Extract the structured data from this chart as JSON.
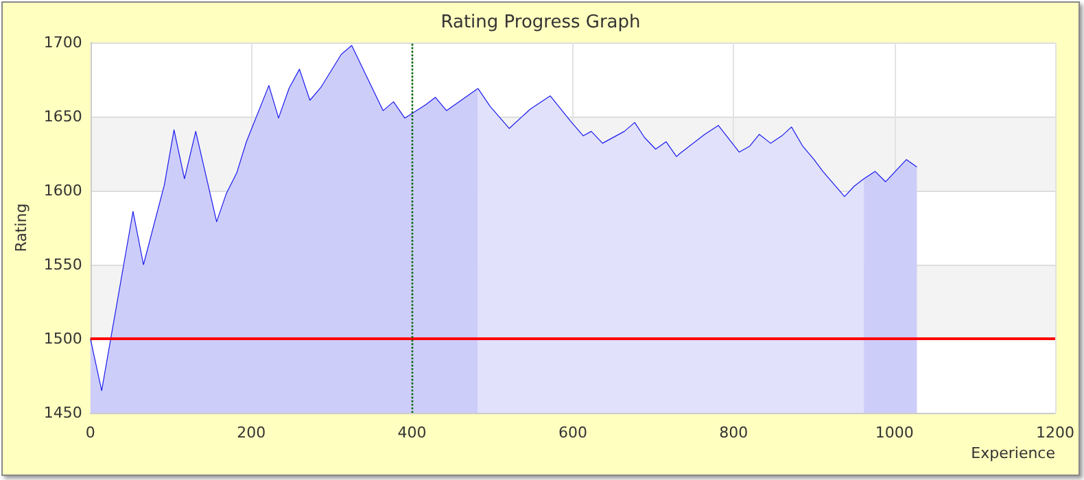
{
  "chart_data": {
    "type": "area",
    "title": "Rating Progress Graph",
    "xlabel": "Experience",
    "ylabel": "Rating",
    "series": [
      {
        "color": "#cdcdfa",
        "x": [
          0,
          14,
          53,
          66,
          92,
          104,
          117,
          131,
          157,
          169,
          182,
          194,
          222,
          234,
          247,
          260,
          273,
          287,
          312,
          325,
          364,
          377,
          391,
          417,
          429,
          443,
          482
        ],
        "values": [
          1500,
          1465,
          1586,
          1550,
          1604,
          1641,
          1608,
          1640,
          1579,
          1598,
          1612,
          1633,
          1671,
          1649,
          1669,
          1682,
          1661,
          1670,
          1692,
          1698,
          1654,
          1660,
          1649,
          1658,
          1663,
          1654,
          1669
        ]
      },
      {
        "color": "#e1e1fb",
        "x": [
          482,
          497,
          521,
          547,
          572,
          597,
          613,
          623,
          637,
          664,
          677,
          689,
          703,
          716,
          729,
          733,
          764,
          781,
          807,
          820,
          832,
          846,
          860,
          872,
          886,
          900,
          911,
          938,
          950,
          962
        ],
        "values": [
          1669,
          1657,
          1642,
          1655,
          1664,
          1647,
          1637,
          1640,
          1632,
          1640,
          1646,
          1636,
          1628,
          1633,
          1623,
          1625,
          1638,
          1644,
          1626,
          1630,
          1638,
          1632,
          1637,
          1643,
          1630,
          1621,
          1613,
          1596,
          1603,
          1608
        ]
      },
      {
        "color": "#cdcdfa",
        "x": [
          962,
          976,
          989,
          1015,
          1028
        ],
        "values": [
          1608,
          1613,
          1606,
          1621,
          1616
        ]
      }
    ],
    "xlim": [
      0,
      1200
    ],
    "xticks": [
      0,
      200,
      400,
      600,
      800,
      1000,
      1200
    ],
    "ylim": [
      1450,
      1700
    ],
    "yticks": [
      1450,
      1500,
      1550,
      1600,
      1650,
      1700
    ],
    "ref_lines": [
      {
        "axis": "y",
        "value": 1500,
        "color": "#ff0000",
        "line_style": "solid"
      },
      {
        "axis": "x",
        "value": 400,
        "color": "#006600",
        "line_style": "dotted"
      }
    ],
    "grid": true,
    "marker": "none"
  }
}
